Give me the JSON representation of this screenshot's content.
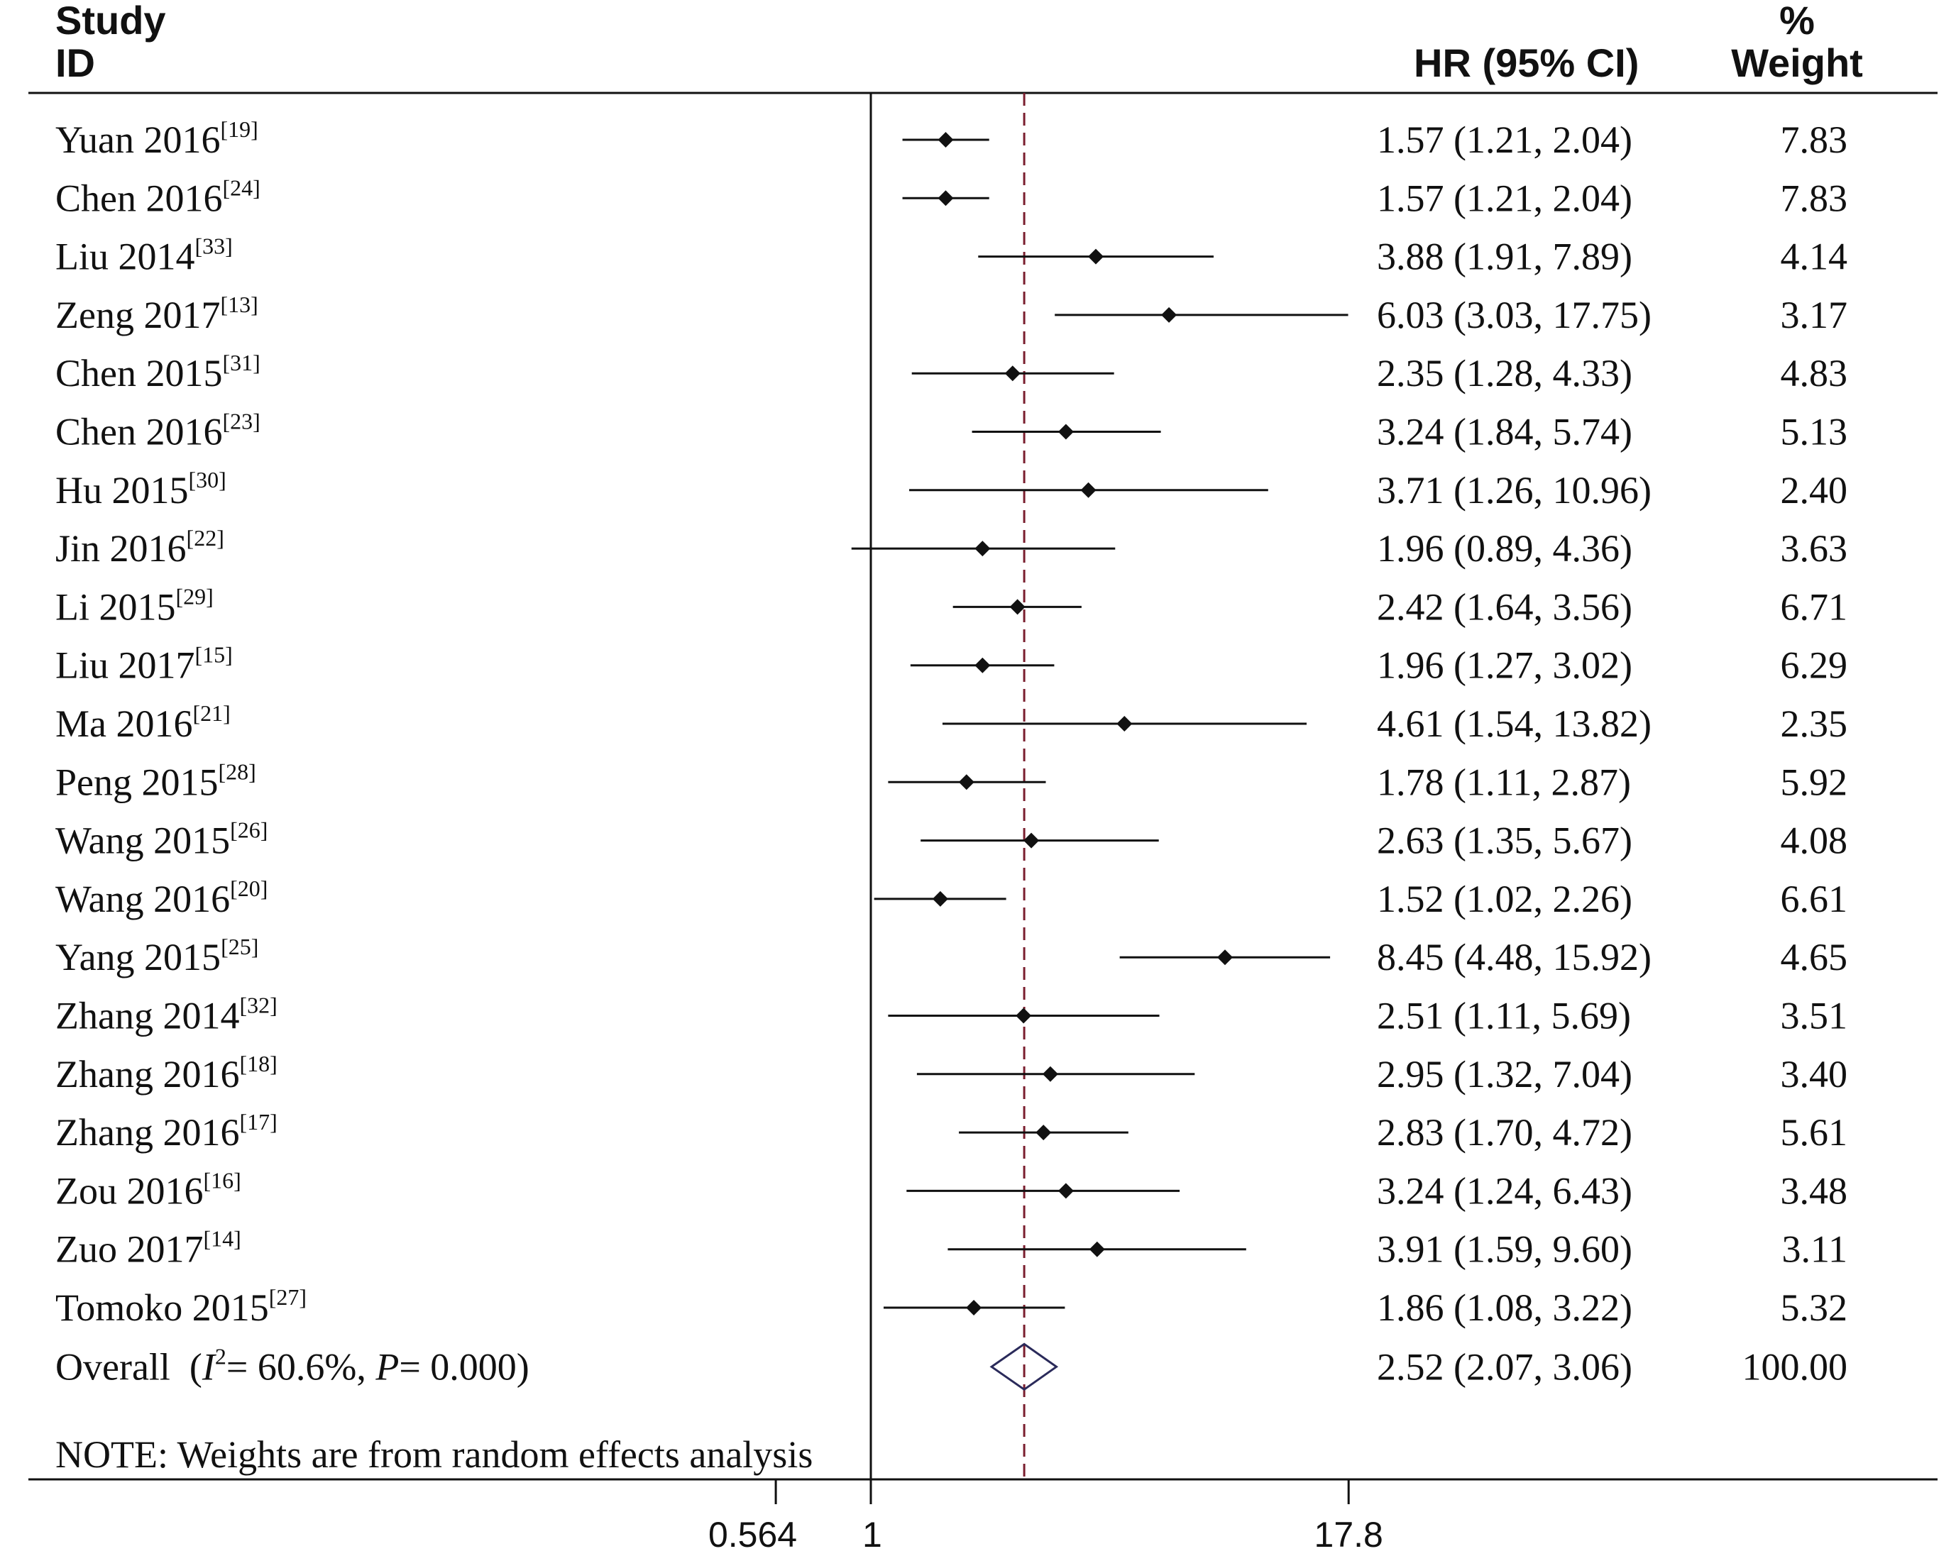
{
  "header": {
    "study_line1": "Study",
    "study_line2": "ID",
    "hr": "HR (95% CI)",
    "weight_line1": "%",
    "weight_line2": "Weight"
  },
  "chart_data": {
    "type": "forest",
    "x_scale": "log",
    "xlim": [
      0.564,
      17.8
    ],
    "x_ticks": [
      "0.564",
      "1",
      "17.8"
    ],
    "null_line": 1,
    "overall_line": 2.52,
    "studies": [
      {
        "name": "Yuan 2016",
        "ref": "[19]",
        "hr": 1.57,
        "lo": 1.21,
        "hi": 2.04,
        "ci_text": "1.57 (1.21, 2.04)",
        "weight": "7.83"
      },
      {
        "name": "Chen 2016",
        "ref": "[24]",
        "hr": 1.57,
        "lo": 1.21,
        "hi": 2.04,
        "ci_text": "1.57 (1.21, 2.04)",
        "weight": "7.83"
      },
      {
        "name": "Liu 2014",
        "ref": "[33]",
        "hr": 3.88,
        "lo": 1.91,
        "hi": 7.89,
        "ci_text": "3.88 (1.91, 7.89)",
        "weight": "4.14"
      },
      {
        "name": "Zeng 2017",
        "ref": "[13]",
        "hr": 6.03,
        "lo": 3.03,
        "hi": 17.75,
        "ci_text": "6.03 (3.03, 17.75)",
        "weight": "3.17"
      },
      {
        "name": "Chen 2015",
        "ref": "[31]",
        "hr": 2.35,
        "lo": 1.28,
        "hi": 4.33,
        "ci_text": "2.35 (1.28, 4.33)",
        "weight": "4.83"
      },
      {
        "name": "Chen 2016",
        "ref": "[23]",
        "hr": 3.24,
        "lo": 1.84,
        "hi": 5.74,
        "ci_text": "3.24 (1.84, 5.74)",
        "weight": "5.13"
      },
      {
        "name": "Hu 2015",
        "ref": "[30]",
        "hr": 3.71,
        "lo": 1.26,
        "hi": 10.96,
        "ci_text": "3.71 (1.26, 10.96)",
        "weight": "2.40"
      },
      {
        "name": "Jin 2016",
        "ref": "[22]",
        "hr": 1.96,
        "lo": 0.89,
        "hi": 4.36,
        "ci_text": "1.96 (0.89, 4.36)",
        "weight": "3.63"
      },
      {
        "name": "Li 2015",
        "ref": "[29]",
        "hr": 2.42,
        "lo": 1.64,
        "hi": 3.56,
        "ci_text": "2.42 (1.64, 3.56)",
        "weight": "6.71"
      },
      {
        "name": "Liu 2017",
        "ref": "[15]",
        "hr": 1.96,
        "lo": 1.27,
        "hi": 3.02,
        "ci_text": "1.96 (1.27, 3.02)",
        "weight": "6.29"
      },
      {
        "name": "Ma 2016",
        "ref": "[21]",
        "hr": 4.61,
        "lo": 1.54,
        "hi": 13.82,
        "ci_text": "4.61 (1.54, 13.82)",
        "weight": "2.35"
      },
      {
        "name": "Peng 2015",
        "ref": "[28]",
        "hr": 1.78,
        "lo": 1.11,
        "hi": 2.87,
        "ci_text": "1.78 (1.11, 2.87)",
        "weight": "5.92"
      },
      {
        "name": "Wang 2015",
        "ref": "[26]",
        "hr": 2.63,
        "lo": 1.35,
        "hi": 5.67,
        "ci_text": "2.63 (1.35, 5.67)",
        "weight": "4.08"
      },
      {
        "name": "Wang 2016",
        "ref": "[20]",
        "hr": 1.52,
        "lo": 1.02,
        "hi": 2.26,
        "ci_text": "1.52 (1.02, 2.26)",
        "weight": "6.61"
      },
      {
        "name": "Yang 2015",
        "ref": "[25]",
        "hr": 8.45,
        "lo": 4.48,
        "hi": 15.92,
        "ci_text": "8.45 (4.48, 15.92)",
        "weight": "4.65"
      },
      {
        "name": "Zhang 2014",
        "ref": "[32]",
        "hr": 2.51,
        "lo": 1.11,
        "hi": 5.69,
        "ci_text": "2.51 (1.11, 5.69)",
        "weight": "3.51"
      },
      {
        "name": "Zhang 2016",
        "ref": "[18]",
        "hr": 2.95,
        "lo": 1.32,
        "hi": 7.04,
        "ci_text": "2.95 (1.32, 7.04)",
        "weight": "3.40"
      },
      {
        "name": "Zhang 2016",
        "ref": "[17]",
        "hr": 2.83,
        "lo": 1.7,
        "hi": 4.72,
        "ci_text": "2.83 (1.70, 4.72)",
        "weight": "5.61"
      },
      {
        "name": "Zou 2016",
        "ref": "[16]",
        "hr": 3.24,
        "lo": 1.24,
        "hi": 6.43,
        "ci_text": "3.24 (1.24, 6.43)",
        "weight": "3.48"
      },
      {
        "name": "Zuo 2017",
        "ref": "[14]",
        "hr": 3.91,
        "lo": 1.59,
        "hi": 9.6,
        "ci_text": "3.91 (1.59, 9.60)",
        "weight": "3.11"
      },
      {
        "name": "Tomoko 2015",
        "ref": "[27]",
        "hr": 1.86,
        "lo": 1.08,
        "hi": 3.22,
        "ci_text": "1.86 (1.08, 3.22)",
        "weight": "5.32"
      }
    ],
    "overall": {
      "label_prefix": "Overall",
      "i2_symbol": "I",
      "i2_sup": "2",
      "i2_value": "= 60.6%, ",
      "p_symbol": "P",
      "p_value": "= 0.000)",
      "hr": 2.52,
      "lo": 2.07,
      "hi": 3.06,
      "ci_text": "2.52 (2.07, 3.06)",
      "weight": "100.00"
    },
    "note": "NOTE: Weights are from random effects analysis",
    "colors": {
      "marker": "#111111",
      "ci_line": "#111111",
      "overall_line": "#7a1e2e",
      "diamond": "#2a2a5a"
    }
  }
}
